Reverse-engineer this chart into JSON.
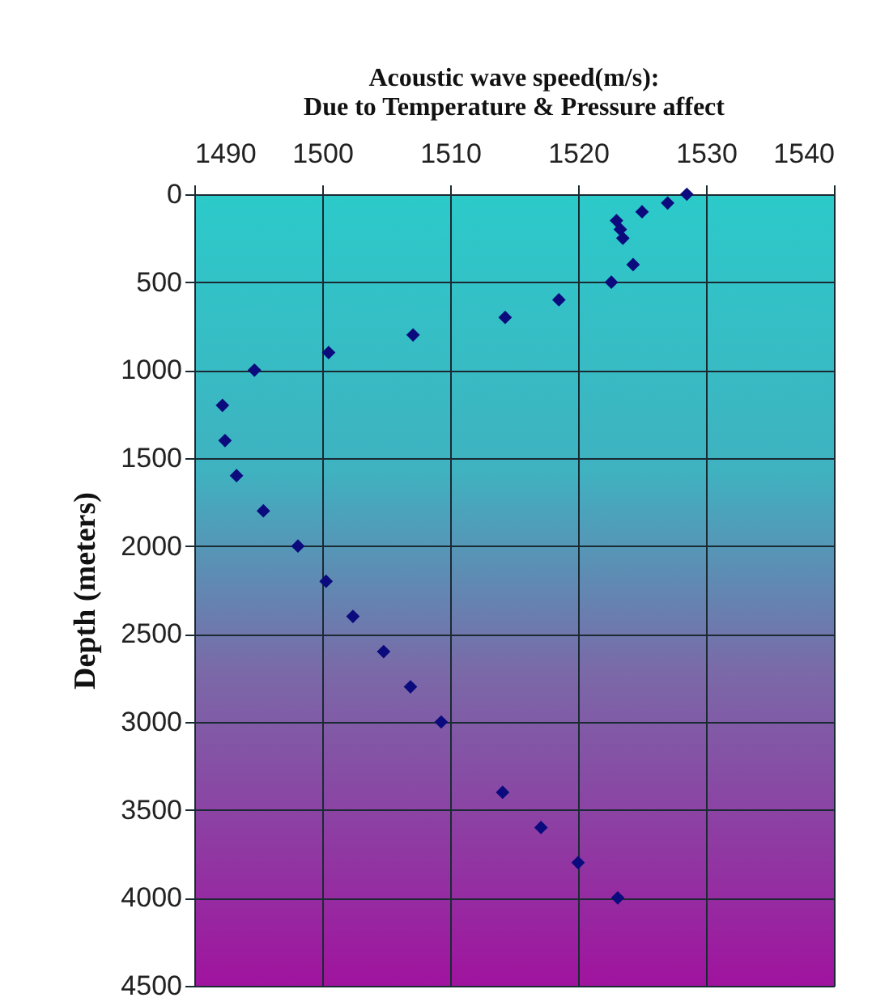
{
  "chart_data": {
    "type": "scatter",
    "title": "Acoustic wave speed(m/s):",
    "subtitle": "Due to Temperature & Pressure affect",
    "ylabel": "Depth (meters)",
    "x": [
      1528.5,
      1527,
      1525,
      1523,
      1523.3,
      1523.5,
      1524.3,
      1522.6,
      1518.5,
      1514.3,
      1507.1,
      1500.5,
      1494.7,
      1492.2,
      1492.4,
      1493.3,
      1495.4,
      1498.1,
      1500.3,
      1502.4,
      1504.8,
      1506.9,
      1509.3,
      1514.1,
      1517.1,
      1520,
      1523.1
    ],
    "values": [
      0,
      50,
      100,
      150,
      200,
      250,
      400,
      500,
      600,
      700,
      800,
      900,
      1000,
      1200,
      1400,
      1600,
      1800,
      2000,
      2200,
      2400,
      2600,
      2800,
      3000,
      3400,
      3600,
      3800,
      4000
    ],
    "color": "#0b0b7e",
    "marker": "diamond",
    "grid": true,
    "xlim": [
      1490,
      1540
    ],
    "xticks": [
      1490,
      1500,
      1510,
      1520,
      1530,
      1540
    ],
    "ylim": [
      4500,
      0
    ],
    "yticks": [
      0,
      500,
      1000,
      1500,
      2000,
      2500,
      3000,
      3500,
      4000,
      4500
    ]
  }
}
